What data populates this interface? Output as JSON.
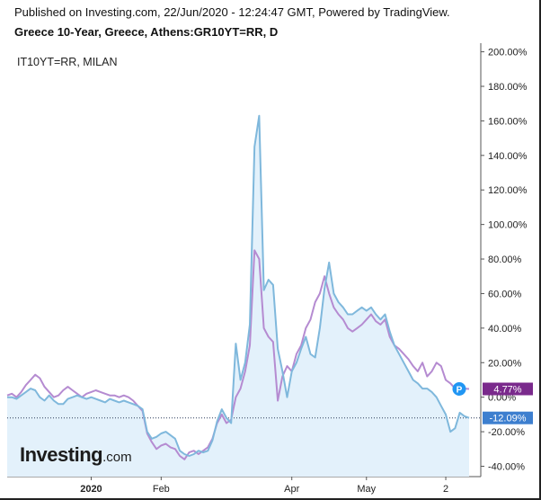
{
  "header": {
    "published": "Published on Investing.com, 22/Jun/2020 - 12:24:47 GMT, Powered by TradingView.",
    "title": "Greece 10-Year, Greece, Athens:GR10YT=RR, D"
  },
  "logo": {
    "brand": "Investing",
    "suffix": ".com"
  },
  "chart_data": {
    "type": "line",
    "y_unit": "%",
    "ylim": [
      -46,
      205
    ],
    "y_ticks": [
      "200.00%",
      "180.00%",
      "160.00%",
      "140.00%",
      "120.00%",
      "100.00%",
      "80.00%",
      "60.00%",
      "40.00%",
      "20.00%",
      "0.00%",
      "-20.00%",
      "-40.00%"
    ],
    "y_tick_values": [
      200,
      180,
      160,
      140,
      120,
      100,
      80,
      60,
      40,
      20,
      0,
      -20,
      -40
    ],
    "x_ticks": [
      "2020",
      "Feb",
      "Apr",
      "May",
      "2"
    ],
    "x_tick_index": [
      18,
      33,
      61,
      77,
      94
    ],
    "series": [
      {
        "name": "Greece 10-Year, Greece, Athens:GR10YT=RR, D",
        "color": "#7fb8dc",
        "fill": "#e3f1fb",
        "last_label": "-12.09%",
        "values": [
          0,
          0,
          -1,
          1,
          3,
          5,
          4,
          0,
          -2,
          1,
          -2,
          -4,
          -4,
          -1,
          0,
          1,
          0,
          -1,
          0,
          -1,
          -2,
          -3,
          -1,
          -2,
          -3,
          -2,
          -3,
          -4,
          -5,
          -7,
          -20,
          -24,
          -23,
          -21,
          -20,
          -22,
          -24,
          -31,
          -33,
          -34,
          -33,
          -31,
          -32,
          -31,
          -25,
          -14,
          -7,
          -12,
          -15,
          31,
          10,
          20,
          42,
          145,
          163,
          62,
          68,
          65,
          28,
          15,
          0,
          15,
          20,
          28,
          35,
          25,
          23,
          40,
          63,
          78,
          60,
          55,
          52,
          48,
          48,
          50,
          52,
          50,
          52,
          48,
          45,
          48,
          38,
          30,
          25,
          20,
          15,
          10,
          8,
          5,
          5,
          3,
          0,
          -5,
          -10,
          -20,
          -18,
          -9,
          -11,
          -12
        ]
      },
      {
        "name": "IT10YT=RR, MILAN",
        "color": "#b58bd1",
        "last_label": "4.77%",
        "values": [
          1,
          2,
          0,
          3,
          7,
          10,
          13,
          11,
          6,
          3,
          0,
          1,
          4,
          6,
          4,
          2,
          0,
          2,
          3,
          4,
          3,
          2,
          1,
          1,
          0,
          1,
          0,
          -2,
          -5,
          -8,
          -21,
          -26,
          -30,
          -28,
          -27,
          -29,
          -30,
          -34,
          -36,
          -32,
          -31,
          -33,
          -31,
          -29,
          -24,
          -15,
          -10,
          -15,
          -13,
          0,
          5,
          15,
          30,
          85,
          80,
          40,
          35,
          32,
          -2,
          12,
          18,
          15,
          25,
          30,
          40,
          45,
          55,
          60,
          70,
          60,
          52,
          48,
          45,
          40,
          38,
          40,
          42,
          45,
          48,
          44,
          42,
          45,
          35,
          30,
          28,
          25,
          22,
          18,
          15,
          20,
          12,
          15,
          20,
          18,
          10,
          8,
          5,
          4,
          5,
          4.77
        ]
      }
    ],
    "markers": {
      "price_line_label": "-12.09%",
      "series_badge": "P"
    }
  }
}
